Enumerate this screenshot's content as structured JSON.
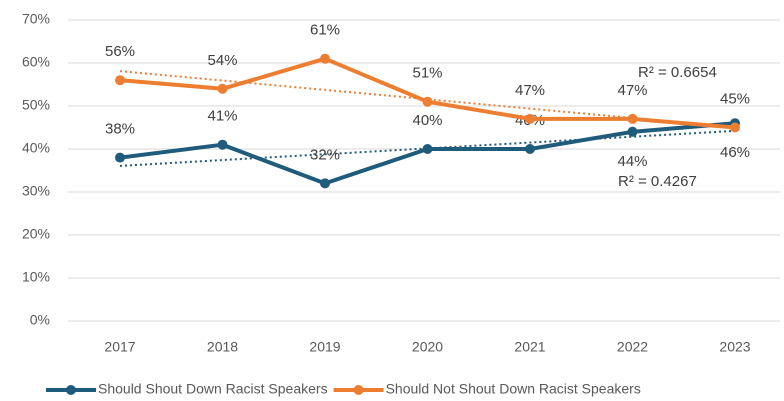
{
  "chart_data": {
    "type": "line",
    "categories": [
      "2017",
      "2018",
      "2019",
      "2020",
      "2021",
      "2022",
      "2023"
    ],
    "series": [
      {
        "name": "Should Shout Down Racist Speakers",
        "color": "#1f5b7a",
        "trendline": true,
        "values": [
          38,
          41,
          32,
          40,
          40,
          44,
          46
        ],
        "value_labels": [
          "38%",
          "41%",
          "32%",
          "40%",
          "40%",
          "44%",
          "46%"
        ]
      },
      {
        "name": "Should Not Shout Down Racist Speakers",
        "color": "#ed7d31",
        "trendline": true,
        "values": [
          56,
          54,
          61,
          51,
          47,
          47,
          45
        ],
        "value_labels": [
          "56%",
          "54%",
          "61%",
          "51%",
          "47%",
          "47%",
          "45%"
        ]
      }
    ],
    "annotations": [
      "R² = 0.4267",
      "R² = 0.6654"
    ],
    "ylim": [
      0,
      70
    ],
    "yticks": [
      {
        "value": 0,
        "label": "0%"
      },
      {
        "value": 10,
        "label": "10%"
      },
      {
        "value": 20,
        "label": "20%"
      },
      {
        "value": 30,
        "label": "30%"
      },
      {
        "value": 40,
        "label": "40%"
      },
      {
        "value": 50,
        "label": "50%"
      },
      {
        "value": 60,
        "label": "60%"
      },
      {
        "value": 70,
        "label": "70%"
      }
    ],
    "grid": true,
    "legend": "bottom"
  }
}
